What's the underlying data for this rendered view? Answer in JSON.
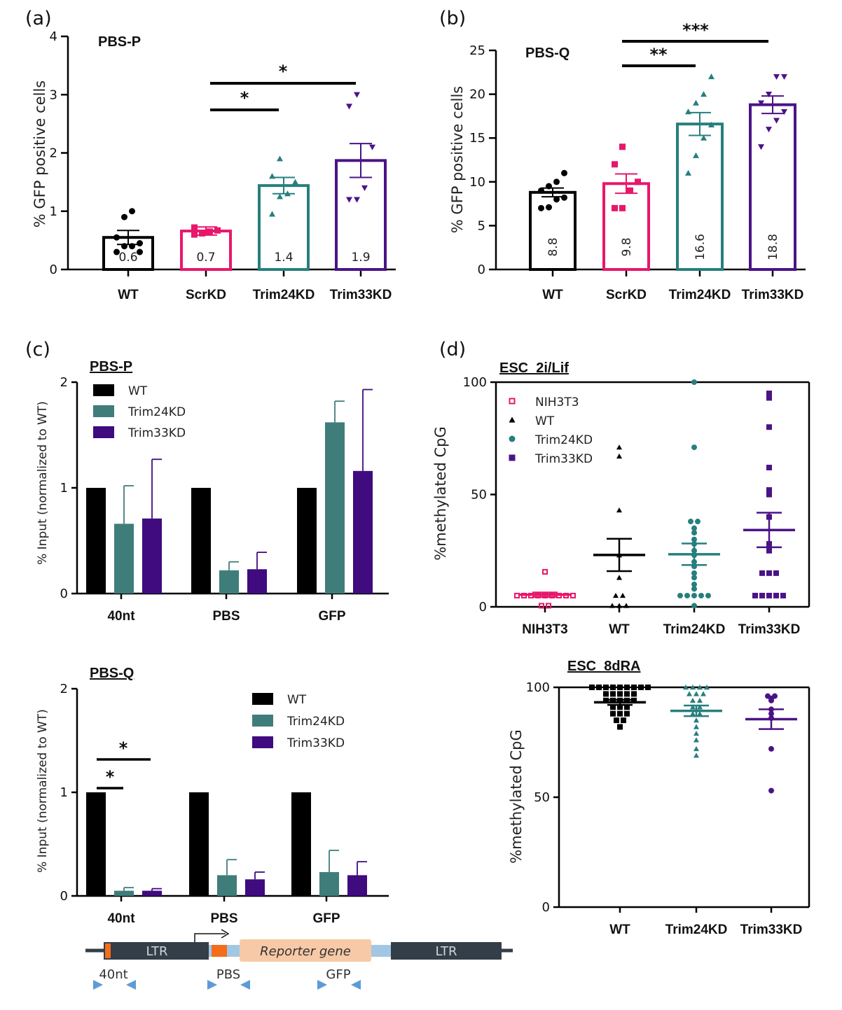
{
  "colors": {
    "wt": "#000000",
    "scr": "#e8176b",
    "t24": "#267f7e",
    "t33": "#4b1387",
    "t24bar": "#3f7d7b",
    "t33bar": "#3f0b7e",
    "ltr": "#333e48",
    "orange": "#f36d1a",
    "reporter": "#f8c9a6",
    "linker": "#a2c7e5",
    "primer": "#5c9bd6"
  },
  "chart_data": [
    {
      "panel": "(a)",
      "type": "bar",
      "title": "PBS-P",
      "ylabel": "% GFP positive cells",
      "yticks": [
        "0",
        "1",
        "2",
        "3",
        "4"
      ],
      "ylim": [
        0,
        4
      ],
      "categories": [
        "WT",
        "ScrKD",
        "Trim24KD",
        "Trim33KD"
      ],
      "values": [
        0.55,
        0.66,
        1.44,
        1.87
      ],
      "errors": [
        0.12,
        0.07,
        0.14,
        0.29
      ],
      "bar_labels": [
        "0.6",
        "0.7",
        "1.4",
        "1.9"
      ],
      "points": [
        [
          0.3,
          0.4,
          0.4,
          0.45,
          0.55,
          0.9,
          1.0,
          0.3
        ],
        [
          0.6,
          0.62,
          0.65,
          0.67,
          0.72
        ],
        [
          0.95,
          1.25,
          1.3,
          1.5,
          1.6,
          1.9
        ],
        [
          1.2,
          1.2,
          1.4,
          2.1,
          2.8,
          3.0
        ]
      ],
      "significance": [
        {
          "from": "ScrKD",
          "to": "Trim24KD",
          "label": "*"
        },
        {
          "from": "ScrKD",
          "to": "Trim33KD",
          "label": "*"
        }
      ]
    },
    {
      "panel": "(b)",
      "type": "bar",
      "title": "PBS-Q",
      "ylabel": "% GFP positive cells",
      "yticks": [
        "0",
        "5",
        "10",
        "15",
        "20",
        "25"
      ],
      "ylim": [
        0,
        25
      ],
      "categories": [
        "WT",
        "ScrKD",
        "Trim24KD",
        "Trim33KD"
      ],
      "values": [
        8.8,
        9.8,
        16.6,
        18.8
      ],
      "errors": [
        0.5,
        1.1,
        1.3,
        1.0
      ],
      "bar_labels": [
        "8.8",
        "9.8",
        "16.6",
        "18.8"
      ],
      "points": [
        [
          7,
          7.1,
          8,
          8.2,
          9,
          9.5,
          10,
          11
        ],
        [
          7,
          7,
          9,
          10,
          12,
          14
        ],
        [
          11,
          13,
          15,
          16.5,
          18,
          19,
          20,
          22
        ],
        [
          14,
          16,
          17,
          18,
          19,
          20,
          22,
          22
        ]
      ],
      "significance": [
        {
          "from": "ScrKD",
          "to": "Trim24KD",
          "label": "**"
        },
        {
          "from": "ScrKD",
          "to": "Trim33KD",
          "label": "***"
        }
      ]
    },
    {
      "panel": "(c)",
      "type": "bar",
      "title": "PBS-P",
      "ylabel": "% Input (normalized to WT)",
      "yticks": [
        "0",
        "1",
        "2"
      ],
      "ylim": [
        0,
        2
      ],
      "categories": [
        "40nt",
        "PBS",
        "GFP"
      ],
      "series": [
        {
          "name": "WT",
          "values": [
            1.0,
            1.0,
            1.0
          ],
          "errors": [
            0,
            0,
            0
          ]
        },
        {
          "name": "Trim24KD",
          "values": [
            0.66,
            0.22,
            1.62
          ],
          "errors": [
            0.36,
            0.08,
            0.2
          ]
        },
        {
          "name": "Trim33KD",
          "values": [
            0.71,
            0.23,
            1.16
          ],
          "errors": [
            0.56,
            0.16,
            0.77
          ]
        }
      ]
    },
    {
      "type": "bar",
      "title": "PBS-Q",
      "ylabel": "% Input (normalized to WT)",
      "yticks": [
        "0",
        "1",
        "2"
      ],
      "ylim": [
        0,
        2
      ],
      "categories": [
        "40nt",
        "PBS",
        "GFP"
      ],
      "series": [
        {
          "name": "WT",
          "values": [
            1.0,
            1.0,
            1.0
          ],
          "errors": [
            0,
            0,
            0
          ]
        },
        {
          "name": "Trim24KD",
          "values": [
            0.05,
            0.2,
            0.23
          ],
          "errors": [
            0.03,
            0.15,
            0.21
          ]
        },
        {
          "name": "Trim33KD",
          "values": [
            0.05,
            0.16,
            0.2
          ],
          "errors": [
            0.02,
            0.07,
            0.13
          ]
        }
      ],
      "significance": [
        {
          "label": "*"
        },
        {
          "label": "*"
        }
      ]
    },
    {
      "panel": "(d)",
      "type": "scatter",
      "title": "ESC_2i/Lif",
      "ylabel": "%methylated CpG",
      "yticks": [
        "0",
        "50",
        "100"
      ],
      "ylim": [
        0,
        100
      ],
      "categories": [
        "NIH3T3",
        "WT",
        "Trim24KD",
        "Trim33KD"
      ],
      "legend": [
        "NIH3T3",
        "WT",
        "Trim24KD",
        "Trim33KD"
      ],
      "means": [
        5.4,
        23.1,
        23.4,
        34.2
      ],
      "sem": [
        1.0,
        7.2,
        4.8,
        7.7
      ],
      "points": [
        [
          15.6,
          5,
          5,
          5,
          5,
          5,
          5,
          5,
          5,
          5,
          0.5,
          0.5
        ],
        [
          71,
          67,
          43,
          23,
          13,
          5,
          0.5,
          0.5,
          0.5,
          5
        ],
        [
          100,
          71,
          38,
          38,
          35,
          33,
          30,
          28,
          25,
          23,
          20,
          18,
          15,
          13,
          10,
          8,
          5,
          5,
          5,
          5,
          5,
          0.5
        ],
        [
          95,
          93,
          80,
          62,
          52,
          50,
          40,
          28,
          25,
          15,
          15,
          15,
          5,
          5,
          5,
          5,
          5
        ]
      ]
    },
    {
      "type": "scatter",
      "title": "ESC_8dRA",
      "ylabel": "%methylated CpG",
      "yticks": [
        "0",
        "50",
        "100"
      ],
      "ylim": [
        0,
        100
      ],
      "categories": [
        "WT",
        "Trim24KD",
        "Trim33KD"
      ],
      "means": [
        93.2,
        89.3,
        85.5
      ],
      "sem": [
        1.2,
        2.4,
        4.5
      ],
      "points": [
        [
          100,
          100,
          100,
          100,
          100,
          100,
          100,
          100,
          100,
          97,
          97,
          97,
          97,
          97,
          94,
          94,
          94,
          94,
          94,
          91,
          91,
          91,
          88,
          88,
          88,
          85,
          85,
          82
        ],
        [
          100,
          100,
          100,
          100,
          97,
          97,
          97,
          94,
          94,
          91,
          91,
          88,
          88,
          85,
          82,
          79,
          76,
          72,
          69
        ],
        [
          96,
          96,
          95,
          94,
          90,
          88,
          86,
          72,
          53
        ]
      ]
    }
  ],
  "diagram": {
    "ltr_left": "LTR",
    "ltr_right": "LTR",
    "reporter": "Reporter gene",
    "primers": [
      "40nt",
      "PBS",
      "GFP"
    ]
  }
}
